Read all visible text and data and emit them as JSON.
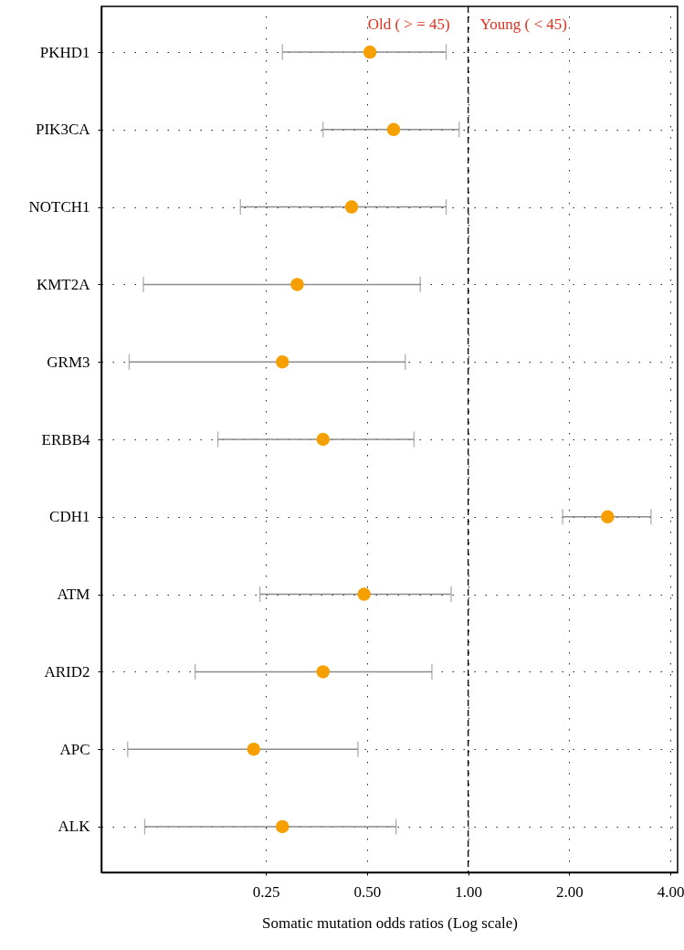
{
  "chart_data": {
    "type": "scatter",
    "orientation": "horizontal",
    "categories": [
      "PKHD1",
      "PIK3CA",
      "NOTCH1",
      "KMT2A",
      "GRM3",
      "ERBB4",
      "CDH1",
      "ATM",
      "ARID2",
      "APC",
      "ALK"
    ],
    "values": [
      0.51,
      0.6,
      0.45,
      0.31,
      0.28,
      0.37,
      2.6,
      0.49,
      0.37,
      0.23,
      0.28
    ],
    "errors": [
      [
        0.28,
        0.86
      ],
      [
        0.37,
        0.94
      ],
      [
        0.21,
        0.86
      ],
      [
        0.108,
        0.72
      ],
      [
        0.098,
        0.65
      ],
      [
        0.18,
        0.69
      ],
      [
        1.91,
        3.5
      ],
      [
        0.24,
        0.89
      ],
      [
        0.154,
        0.78
      ],
      [
        0.097,
        0.47
      ],
      [
        0.109,
        0.61
      ]
    ],
    "color": "#f5a000",
    "marker": "circle",
    "xlabel": "Somatic mutation odds ratios (Log scale)",
    "xlim": [
      0.081,
      4.2
    ],
    "xticks": [
      0.25,
      {
        "value": 0.5,
        "label": "0.50"
      },
      {
        "value": 1,
        "label": "1.00"
      },
      {
        "value": 2,
        "label": "2.00"
      },
      {
        "value": 4,
        "label": "4.00"
      }
    ],
    "log": "x",
    "grid": true,
    "ref_lines": [
      {
        "axis": "x",
        "value": 1,
        "line_style": "dashed"
      }
    ],
    "annotations": [
      "Old ( > = 45)",
      "Young ( < 45)"
    ]
  }
}
